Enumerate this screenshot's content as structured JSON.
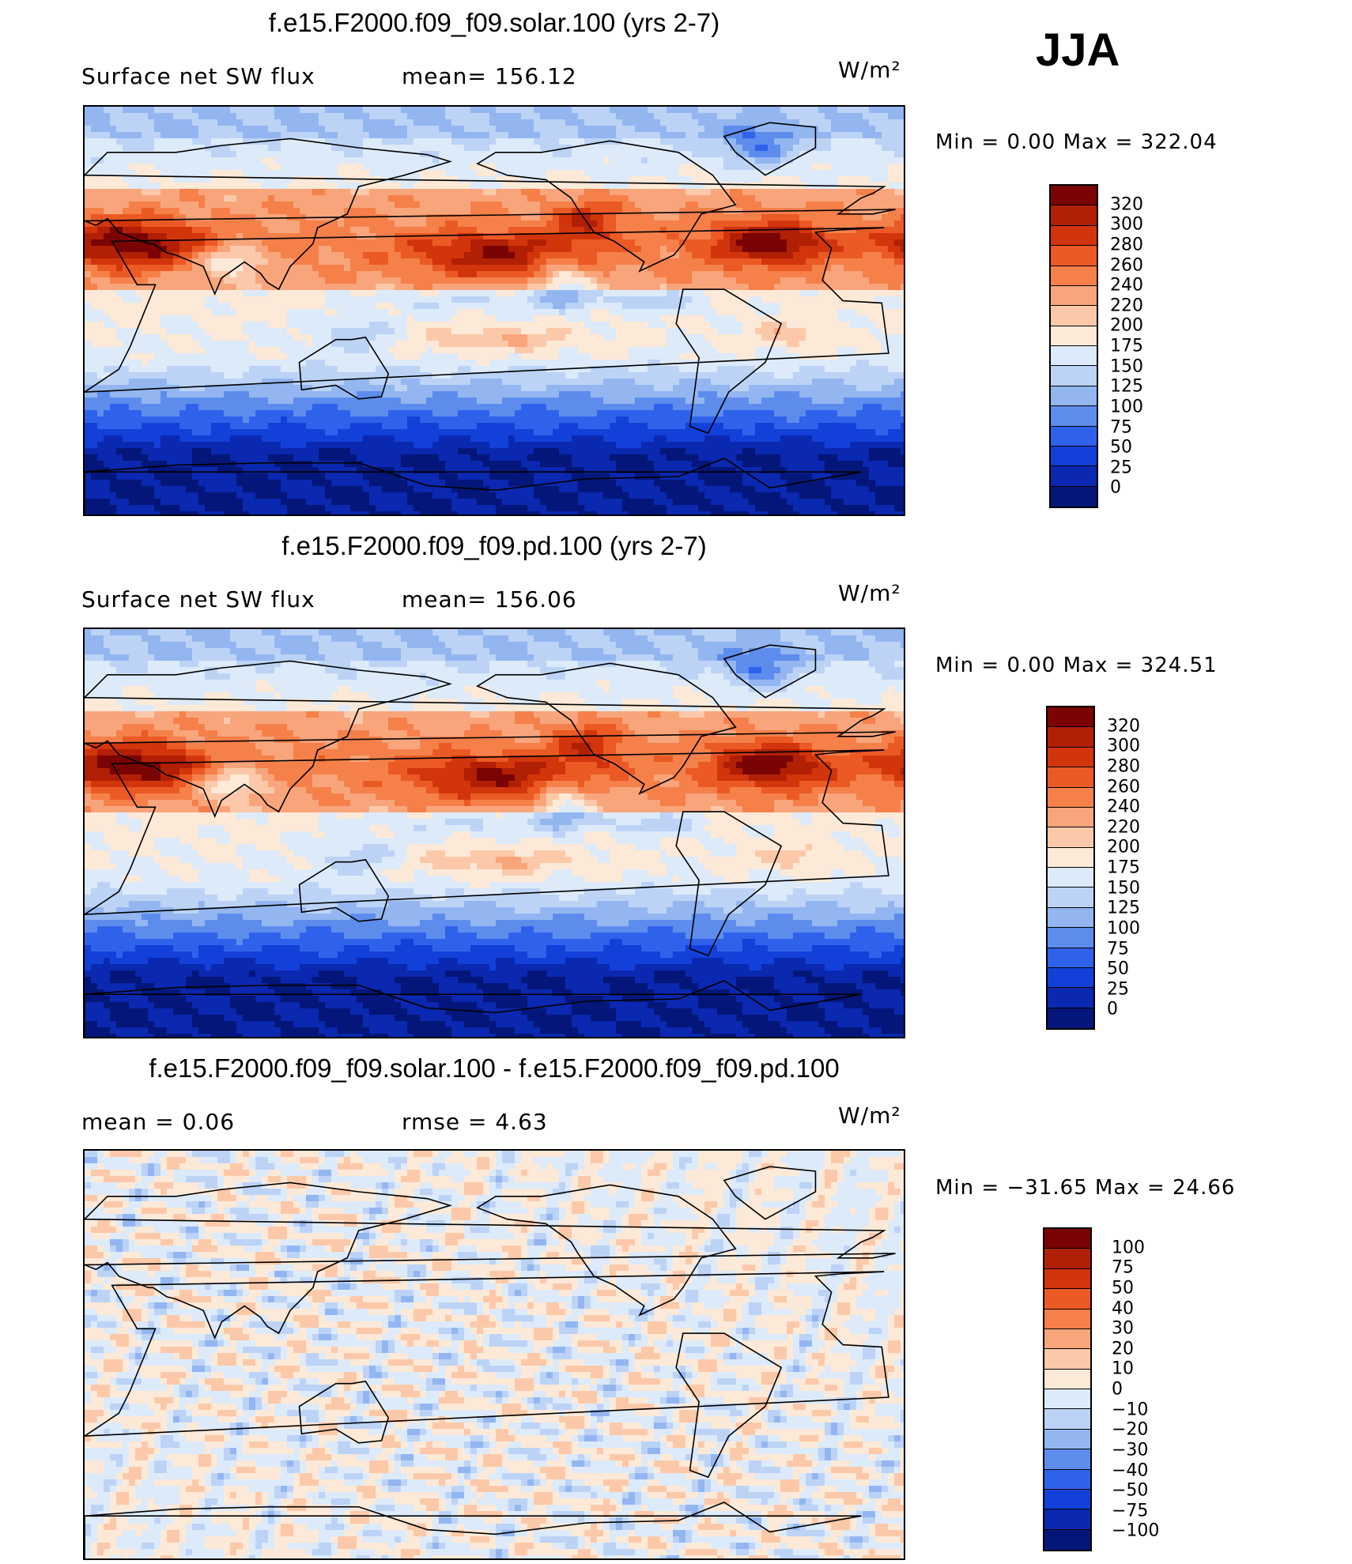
{
  "season_label": "JJA",
  "units": "W/m²",
  "panels": [
    {
      "title": "f.e15.F2000.f09_f09.solar.100 (yrs 2-7)",
      "left_text": "Surface net SW flux",
      "right_text": "mean= 156.12",
      "minmax": "Min =    0.00 Max = 322.04",
      "colorbar_labels": [
        "320",
        "300",
        "280",
        "260",
        "240",
        "220",
        "200",
        "175",
        "150",
        "125",
        "100",
        "75",
        "50",
        "25",
        "0"
      ]
    },
    {
      "title": "f.e15.F2000.f09_f09.pd.100 (yrs 2-7)",
      "left_text": "Surface net SW flux",
      "right_text": "mean= 156.06",
      "minmax": "Min =    0.00 Max = 324.51",
      "colorbar_labels": [
        "320",
        "300",
        "280",
        "260",
        "240",
        "220",
        "200",
        "175",
        "150",
        "125",
        "100",
        "75",
        "50",
        "25",
        "0"
      ]
    },
    {
      "title": "f.e15.F2000.f09_f09.solar.100 - f.e15.F2000.f09_f09.pd.100",
      "left_text": "mean =    0.06",
      "right_text": "rmse =    4.63",
      "minmax": "Min = −31.65 Max =  24.66",
      "colorbar_labels": [
        "100",
        "75",
        "50",
        "40",
        "30",
        "20",
        "10",
        "0",
        "−10",
        "−20",
        "−30",
        "−40",
        "−50",
        "−75",
        "−100"
      ]
    }
  ],
  "colors": {
    "abs_scale": [
      "#7a0403",
      "#b11f05",
      "#d2350b",
      "#eb5a24",
      "#f5804a",
      "#f8a57c",
      "#fbc9aa",
      "#fde9d8",
      "#ddeaf9",
      "#bcd3f6",
      "#93b6f1",
      "#5d8ced",
      "#2f62ea",
      "#1240d9",
      "#0a28b0",
      "#041679"
    ],
    "diff_scale": [
      "#7a0403",
      "#b11f05",
      "#d2350b",
      "#eb5a24",
      "#f5804a",
      "#f8a57c",
      "#fbc9aa",
      "#fde9d8",
      "#ddeaf9",
      "#bcd3f6",
      "#93b6f1",
      "#5d8ced",
      "#2f62ea",
      "#1240d9",
      "#0a28b0",
      "#041679"
    ],
    "polar_ocean": "#0b23a8",
    "coast": "#000000"
  },
  "chart_data": [
    {
      "type": "heatmap",
      "title": "f.e15.F2000.f09_f09.solar.100 (yrs 2-7)",
      "variable": "Surface net SW flux",
      "units": "W/m²",
      "season": "JJA",
      "mean": 156.12,
      "min": 0.0,
      "max": 322.04,
      "levels": [
        0,
        25,
        50,
        75,
        100,
        125,
        150,
        175,
        200,
        220,
        240,
        260,
        280,
        300,
        320
      ],
      "projection": "cylindrical equidistant, centered on Pacific",
      "features": {
        "subtropical_pacific_high": 280,
        "subtropical_atlantic_high": 300,
        "sahara_arabia": 320,
        "southern_ocean_antarctica": 0,
        "greenland": 75
      }
    },
    {
      "type": "heatmap",
      "title": "f.e15.F2000.f09_f09.pd.100 (yrs 2-7)",
      "variable": "Surface net SW flux",
      "units": "W/m²",
      "season": "JJA",
      "mean": 156.06,
      "min": 0.0,
      "max": 324.51,
      "levels": [
        0,
        25,
        50,
        75,
        100,
        125,
        150,
        175,
        200,
        220,
        240,
        260,
        280,
        300,
        320
      ],
      "projection": "cylindrical equidistant, centered on Pacific",
      "features": {
        "subtropical_pacific_high": 280,
        "subtropical_atlantic_high": 300,
        "sahara_arabia": 320,
        "southern_ocean_antarctica": 0,
        "greenland": 75
      }
    },
    {
      "type": "heatmap",
      "title": "f.e15.F2000.f09_f09.solar.100 - f.e15.F2000.f09_f09.pd.100",
      "units": "W/m²",
      "season": "JJA",
      "mean": 0.06,
      "rmse": 4.63,
      "min": -31.65,
      "max": 24.66,
      "levels": [
        -100,
        -75,
        -50,
        -40,
        -30,
        -20,
        -10,
        0,
        10,
        20,
        30,
        40,
        50,
        75,
        100
      ],
      "projection": "cylindrical equidistant, centered on Pacific"
    }
  ]
}
